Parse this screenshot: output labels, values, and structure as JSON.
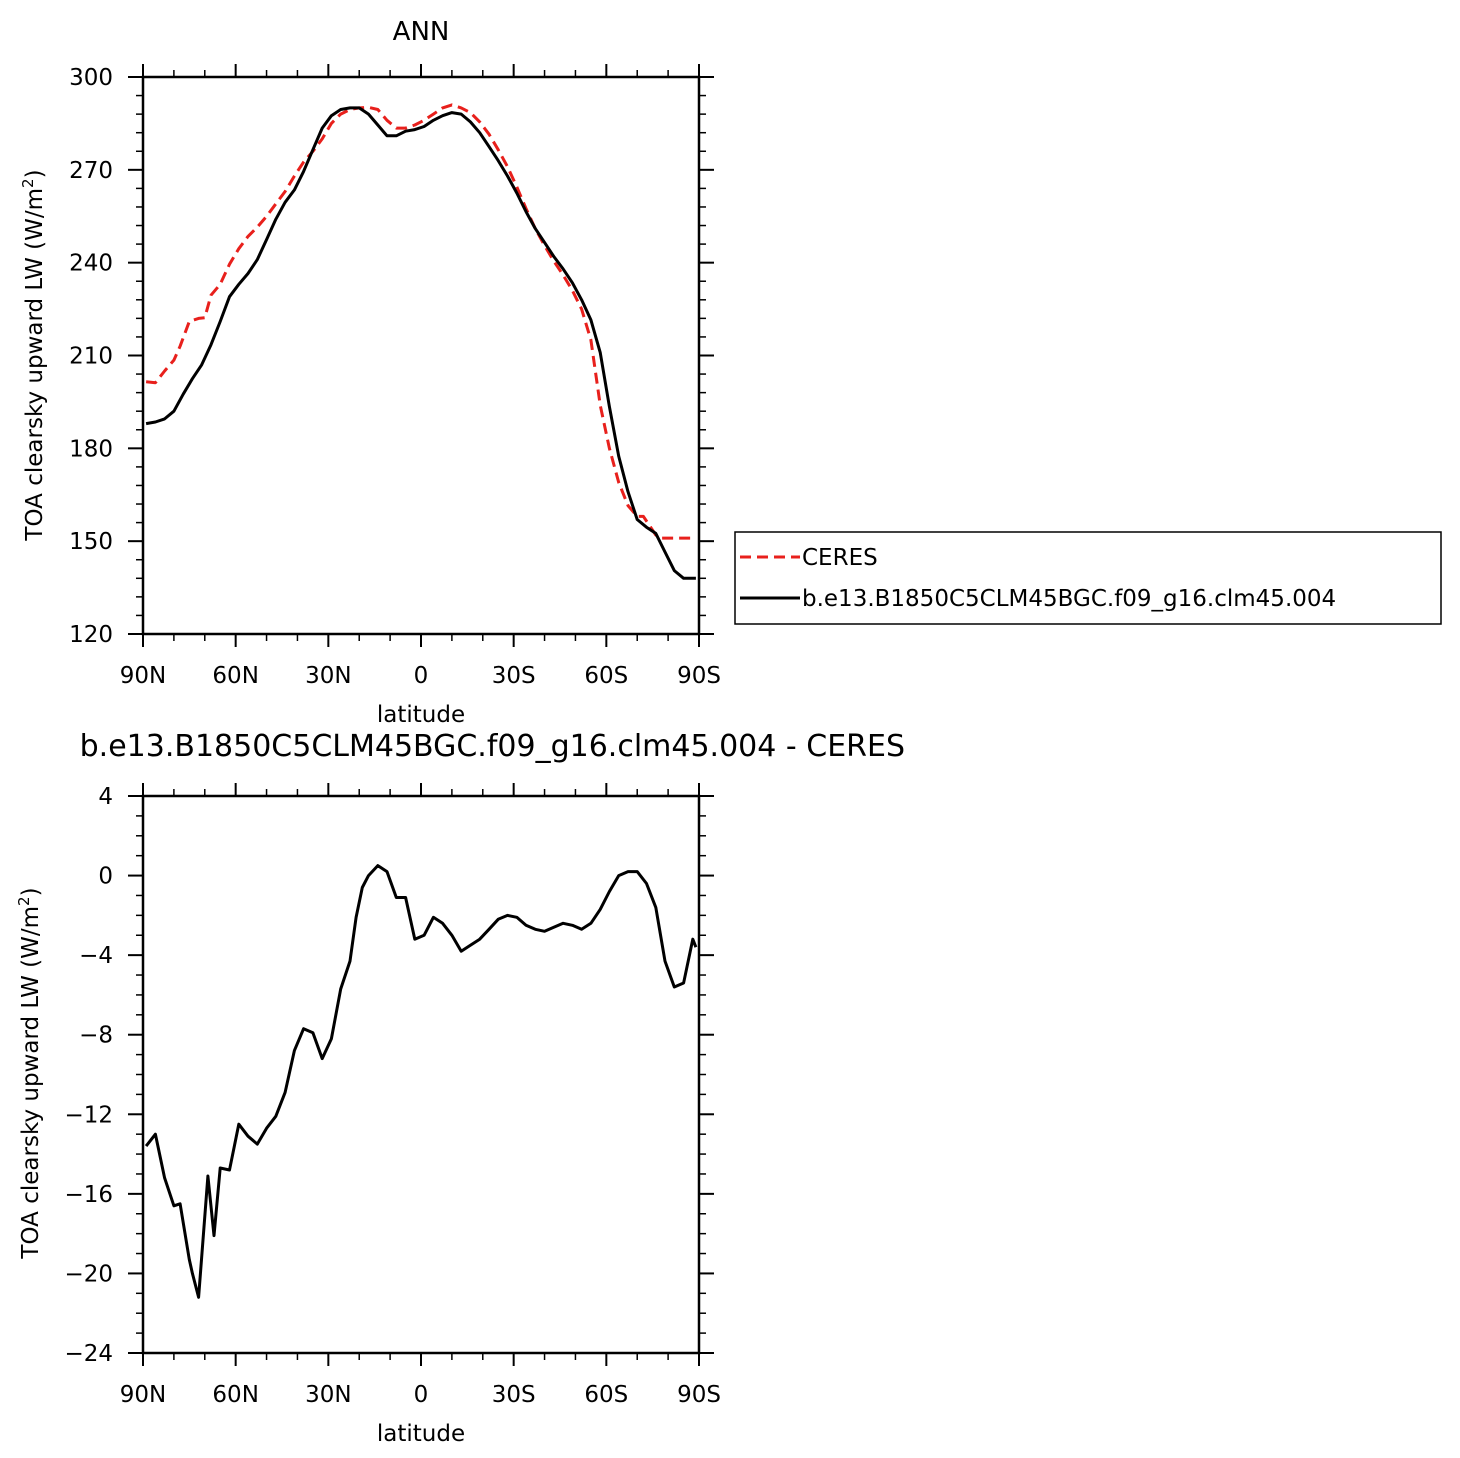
{
  "chart_data": [
    {
      "type": "line",
      "title": "ANN",
      "xlabel": "latitude",
      "ylabel_main": "TOA clearsky upward LW (W/m",
      "ylabel_sup": "2",
      "ylabel_close": ")",
      "xlim": [
        90,
        -90
      ],
      "ylim": [
        120,
        300
      ],
      "xticks": [
        {
          "value": 90,
          "label": "90N"
        },
        {
          "value": 60,
          "label": "60N"
        },
        {
          "value": 30,
          "label": "30N"
        },
        {
          "value": 0,
          "label": "0"
        },
        {
          "value": -30,
          "label": "30S"
        },
        {
          "value": -60,
          "label": "60S"
        },
        {
          "value": -90,
          "label": "90S"
        }
      ],
      "yticks": [
        300,
        270,
        240,
        210,
        180,
        150,
        120
      ],
      "legend": {
        "placement": "right",
        "entries": [
          "CERES",
          "b.e13.B1850C5CLM45BGC.f09_g16.clm45.004"
        ]
      },
      "series": [
        {
          "name": "CERES",
          "color": "#e8201c",
          "dash": "dashed",
          "x": [
            89,
            86,
            83,
            80,
            78,
            75,
            72,
            70,
            68,
            65,
            62,
            59,
            56,
            53,
            50,
            47,
            44,
            41,
            38,
            35,
            32,
            29,
            26,
            23,
            20,
            17,
            14,
            11,
            8,
            5,
            2,
            -1,
            -4,
            -7,
            -10,
            -13,
            -16,
            -19,
            -22,
            -25,
            -28,
            -31,
            -34,
            -37,
            -40,
            -43,
            -46,
            -49,
            -52,
            -55,
            -58,
            -61,
            -64,
            -67,
            -70,
            -72,
            -74,
            -76,
            -78,
            -80,
            -82,
            -84,
            -86,
            -88,
            -89
          ],
          "values": [
            201.5,
            201.2,
            205.0,
            208.5,
            213.0,
            221.0,
            222.0,
            222.2,
            229.5,
            233.0,
            239.5,
            244.5,
            248.5,
            251.5,
            255.0,
            259.0,
            263.0,
            268.0,
            272.5,
            276.0,
            280.0,
            285.0,
            288.0,
            289.5,
            290.0,
            290.2,
            289.5,
            286.0,
            283.5,
            283.5,
            284.5,
            286.0,
            288.0,
            290.0,
            291.0,
            290.0,
            288.5,
            285.5,
            281.5,
            276.5,
            271.0,
            264.5,
            257.5,
            251.0,
            245.5,
            240.5,
            236.0,
            231.0,
            225.0,
            215.0,
            194.0,
            180.0,
            169.0,
            161.5,
            158.0,
            158.0,
            155.0,
            152.0,
            151.0,
            151.0,
            151.0,
            151.0,
            151.0,
            151.0,
            151.0
          ]
        },
        {
          "name": "b.e13.B1850C5CLM45BGC.f09_g16.clm45.004",
          "color": "#000000",
          "dash": "solid",
          "x": [
            89,
            86,
            83,
            80,
            77,
            74,
            71,
            68,
            65,
            62,
            59,
            56,
            53,
            50,
            47,
            44,
            41,
            38,
            35,
            32,
            29,
            26,
            23,
            20,
            17,
            14,
            11,
            8,
            5,
            2,
            -1,
            -4,
            -7,
            -10,
            -13,
            -16,
            -19,
            -22,
            -25,
            -28,
            -31,
            -34,
            -37,
            -40,
            -43,
            -46,
            -49,
            -52,
            -55,
            -58,
            -61,
            -64,
            -67,
            -70,
            -73,
            -76,
            -79,
            -82,
            -85,
            -88,
            -89
          ],
          "values": [
            188.0,
            188.5,
            189.5,
            192.0,
            197.5,
            202.5,
            207.0,
            213.5,
            221.0,
            229.0,
            233.0,
            236.5,
            241.0,
            247.5,
            254.0,
            259.5,
            263.5,
            269.5,
            276.5,
            283.5,
            287.5,
            289.5,
            290.0,
            290.0,
            288.0,
            284.5,
            281.0,
            281.0,
            282.5,
            283.0,
            284.0,
            286.0,
            287.5,
            288.5,
            288.0,
            285.5,
            282.0,
            277.5,
            273.0,
            268.0,
            262.5,
            256.5,
            251.0,
            246.5,
            242.0,
            238.0,
            233.5,
            228.0,
            221.5,
            211.0,
            193.5,
            177.5,
            166.0,
            157.0,
            154.5,
            152.5,
            146.5,
            140.5,
            138.0,
            138.0,
            138.0
          ]
        }
      ]
    },
    {
      "type": "line",
      "title": "b.e13.B1850C5CLM45BGC.f09_g16.clm45.004 - CERES",
      "xlabel": "latitude",
      "ylabel_main": "TOA clearsky upward LW (W/m",
      "ylabel_sup": "2",
      "ylabel_close": ")",
      "xlim": [
        90,
        -90
      ],
      "ylim": [
        -24,
        4
      ],
      "xticks": [
        {
          "value": 90,
          "label": "90N"
        },
        {
          "value": 60,
          "label": "60N"
        },
        {
          "value": 30,
          "label": "30N"
        },
        {
          "value": 0,
          "label": "0"
        },
        {
          "value": -30,
          "label": "30S"
        },
        {
          "value": -60,
          "label": "60S"
        },
        {
          "value": -90,
          "label": "90S"
        }
      ],
      "yticks": [
        4,
        0,
        -4,
        -8,
        -12,
        -16,
        -20,
        -24
      ],
      "series": [
        {
          "color": "#000000",
          "dash": "solid",
          "x": [
            89,
            86,
            83,
            80,
            78,
            75,
            74,
            72,
            69,
            67,
            65,
            62,
            59,
            56,
            53,
            50,
            47,
            44,
            41,
            38,
            35,
            32,
            29,
            26,
            23,
            21,
            19,
            17,
            14,
            11,
            8,
            5,
            2,
            -1,
            -4,
            -7,
            -10,
            -13,
            -16,
            -19,
            -22,
            -25,
            -28,
            -31,
            -34,
            -37,
            -40,
            -43,
            -46,
            -49,
            -52,
            -55,
            -58,
            -61,
            -64,
            -67,
            -70,
            -73,
            -76,
            -79,
            -82,
            -85,
            -88,
            -89
          ],
          "values": [
            -13.6,
            -13.0,
            -15.2,
            -16.6,
            -16.5,
            -19.3,
            -20.0,
            -21.2,
            -15.1,
            -18.1,
            -14.7,
            -14.8,
            -12.5,
            -13.1,
            -13.5,
            -12.7,
            -12.1,
            -10.9,
            -8.8,
            -7.7,
            -7.9,
            -9.2,
            -8.2,
            -5.7,
            -4.3,
            -2.1,
            -0.6,
            0.0,
            0.5,
            0.2,
            -1.1,
            -1.1,
            -3.2,
            -3.0,
            -2.1,
            -2.4,
            -3.0,
            -3.8,
            -3.5,
            -3.2,
            -2.7,
            -2.2,
            -2.0,
            -2.1,
            -2.5,
            -2.7,
            -2.8,
            -2.6,
            -2.4,
            -2.5,
            -2.7,
            -2.4,
            -1.7,
            -0.8,
            0.0,
            0.2,
            0.2,
            -0.4,
            -1.6,
            -4.3,
            -5.6,
            -5.4,
            -3.2,
            -3.6
          ]
        }
      ]
    }
  ]
}
